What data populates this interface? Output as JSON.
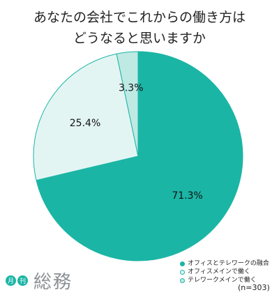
{
  "chart_data": {
    "type": "pie",
    "title_lines": [
      "あなたの会社でこれからの働き方は",
      "どうなると思いますか"
    ],
    "slices": [
      {
        "name": "オフィスとテレワークの融合",
        "value": 71.3,
        "label": "71.3%",
        "color": "#1bb5a5"
      },
      {
        "name": "オフィスメインで働く",
        "value": 25.4,
        "label": "25.4%",
        "color": "#e3f5f3"
      },
      {
        "name": "テレワークメインで働く",
        "value": 3.3,
        "label": "3.3%",
        "color": "#bfe9e3"
      }
    ],
    "stroke_color": "#1bb5a5",
    "legend_position": "bottom-right",
    "sample_size": "(n=303)"
  },
  "logo": {
    "badge_1": "月",
    "badge_2": "刊",
    "text": "総務"
  }
}
